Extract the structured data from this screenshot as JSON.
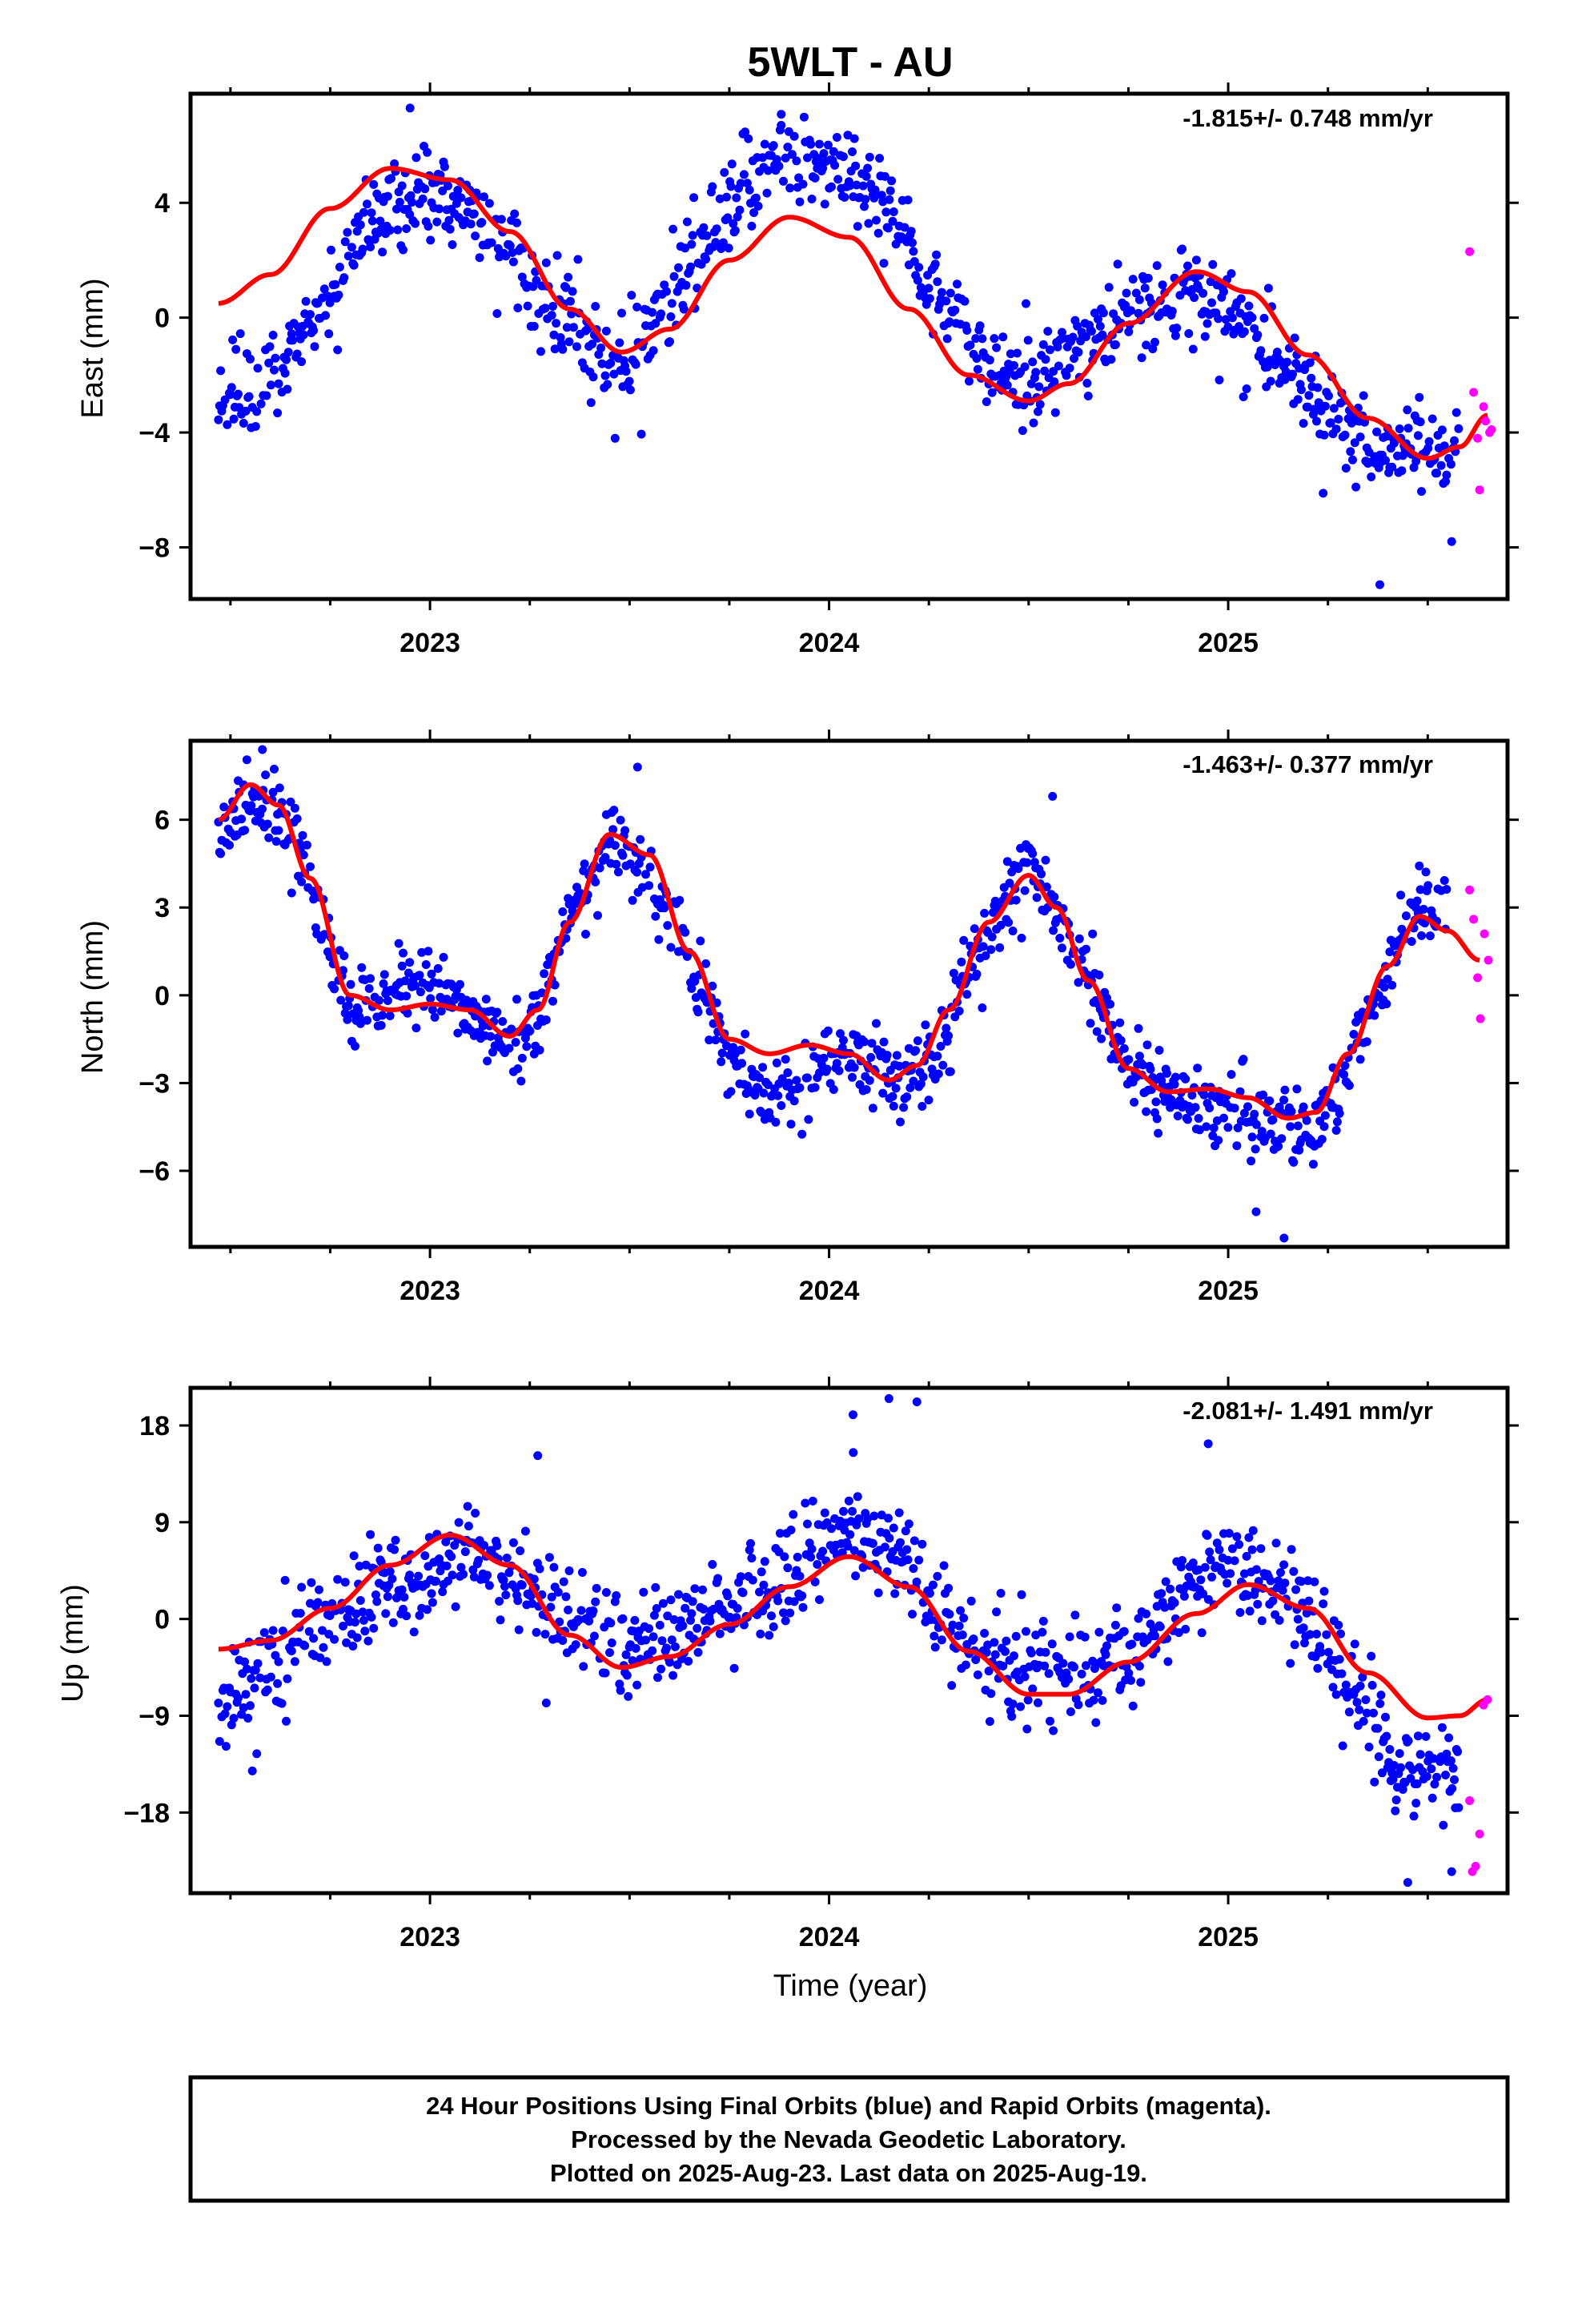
{
  "title": "5WLT - AU",
  "xlabel": "Time (year)",
  "colors": {
    "final": "#0000ff",
    "rapid": "#ff00ff",
    "fit": "#ff0000",
    "frame": "#000000"
  },
  "footer": {
    "lines": [
      "24 Hour Positions Using Final Orbits (blue) and Rapid Orbits (magenta).",
      "Processed by the Nevada Geodetic Laboratory.",
      "Plotted on 2025-Aug-23. Last data on 2025-Aug-19."
    ]
  },
  "chart_data": [
    {
      "type": "scatter",
      "component": "east",
      "ylabel": "East (mm)",
      "rate_label": "-1.815+/- 0.748 mm/yr",
      "xlim": [
        2022.4,
        2025.7
      ],
      "ylim": [
        -9.8,
        7.8
      ],
      "x_ticks": [
        2023,
        2024,
        2025
      ],
      "y_ticks": [
        -8,
        -4,
        0,
        4
      ],
      "fit_curve": {
        "x": [
          2022.47,
          2022.6,
          2022.75,
          2022.9,
          2023.05,
          2023.2,
          2023.35,
          2023.48,
          2023.6,
          2023.75,
          2023.9,
          2024.05,
          2024.2,
          2024.35,
          2024.5,
          2024.6,
          2024.75,
          2024.92,
          2025.05,
          2025.2,
          2025.35,
          2025.5,
          2025.58,
          2025.65
        ],
        "y": [
          0.5,
          1.5,
          3.8,
          5.2,
          4.8,
          3.0,
          0.3,
          -1.2,
          -0.4,
          2.0,
          3.5,
          2.8,
          0.3,
          -2.0,
          -2.9,
          -2.3,
          -0.2,
          1.6,
          0.9,
          -1.3,
          -3.5,
          -4.9,
          -4.5,
          -3.4
        ]
      },
      "final_trend": {
        "x": [
          2022.47,
          2022.55,
          2022.65,
          2022.72,
          2022.8,
          2022.9,
          2023.0,
          2023.1,
          2023.2,
          2023.28,
          2023.38,
          2023.45,
          2023.52,
          2023.6,
          2023.68,
          2023.76,
          2023.84,
          2023.92,
          2024.0,
          2024.08,
          2024.16,
          2024.24,
          2024.3,
          2024.38,
          2024.45,
          2024.52,
          2024.6,
          2024.7,
          2024.8,
          2024.9,
          2024.98,
          2025.05,
          2025.12,
          2025.2,
          2025.28,
          2025.36,
          2025.44,
          2025.52,
          2025.58
        ],
        "y": [
          -2.8,
          -2.2,
          -1.5,
          0.0,
          2.0,
          4.0,
          4.5,
          3.8,
          2.5,
          0.5,
          -0.5,
          -1.8,
          -1.2,
          0.5,
          2.5,
          4.0,
          5.5,
          6.0,
          5.5,
          4.5,
          3.5,
          1.5,
          0.0,
          -1.5,
          -2.3,
          -2.0,
          -1.2,
          -0.3,
          0.5,
          1.0,
          0.5,
          -0.3,
          -1.3,
          -2.5,
          -3.8,
          -4.3,
          -4.5,
          -4.4,
          -4.2
        ]
      },
      "final_spread": 1.1,
      "final_outliers": [
        [
          2025.38,
          -9.3
        ],
        [
          2025.56,
          -7.8
        ],
        [
          2022.95,
          7.3
        ],
        [
          2023.88,
          6.7
        ]
      ],
      "rapid": {
        "x": [
          2025.605,
          2025.615,
          2025.625,
          2025.63,
          2025.64,
          2025.645,
          2025.655,
          2025.66
        ],
        "y": [
          2.3,
          -2.6,
          -4.2,
          -6.0,
          -3.1,
          -3.6,
          -4.0,
          -3.9
        ]
      }
    },
    {
      "type": "scatter",
      "component": "north",
      "ylabel": "North (mm)",
      "rate_label": "-1.463+/- 0.377 mm/yr",
      "xlim": [
        2022.4,
        2025.7
      ],
      "ylim": [
        -8.6,
        8.7
      ],
      "x_ticks": [
        2023,
        2024,
        2025
      ],
      "y_ticks": [
        -6,
        -3,
        0,
        3,
        6
      ],
      "fit_curve": {
        "x": [
          2022.47,
          2022.55,
          2022.62,
          2022.7,
          2022.8,
          2022.9,
          2023.0,
          2023.1,
          2023.2,
          2023.27,
          2023.35,
          2023.45,
          2023.55,
          2023.65,
          2023.75,
          2023.85,
          2023.95,
          2024.05,
          2024.15,
          2024.22,
          2024.3,
          2024.4,
          2024.5,
          2024.57,
          2024.65,
          2024.75,
          2024.85,
          2024.95,
          2025.05,
          2025.15,
          2025.22,
          2025.3,
          2025.4,
          2025.48,
          2025.55,
          2025.63
        ],
        "y": [
          6.0,
          7.2,
          6.5,
          4.0,
          0.0,
          -0.5,
          -0.3,
          -0.5,
          -1.4,
          -0.5,
          2.5,
          5.5,
          4.8,
          1.5,
          -1.5,
          -2.0,
          -1.7,
          -2.0,
          -2.9,
          -2.4,
          -0.5,
          2.5,
          4.1,
          3.0,
          0.5,
          -2.5,
          -3.3,
          -3.2,
          -3.5,
          -4.2,
          -4.0,
          -2.0,
          1.0,
          2.7,
          2.2,
          1.2
        ]
      },
      "final_trend": {
        "x": [
          2022.47,
          2022.55,
          2022.62,
          2022.7,
          2022.8,
          2022.9,
          2023.0,
          2023.1,
          2023.2,
          2023.27,
          2023.35,
          2023.45,
          2023.55,
          2023.65,
          2023.75,
          2023.85,
          2023.95,
          2024.05,
          2024.15,
          2024.22,
          2024.3,
          2024.4,
          2024.5,
          2024.57,
          2024.65,
          2024.75,
          2024.85,
          2024.95,
          2025.05,
          2025.15,
          2025.22,
          2025.3,
          2025.4,
          2025.48,
          2025.55
        ],
        "y": [
          5.5,
          6.8,
          6.5,
          3.5,
          -0.5,
          0.2,
          0.5,
          -0.5,
          -1.8,
          -1.0,
          2.5,
          5.5,
          4.0,
          1.0,
          -2.0,
          -3.5,
          -2.8,
          -2.0,
          -2.5,
          -2.8,
          -1.0,
          2.5,
          4.5,
          3.0,
          0.5,
          -2.5,
          -3.5,
          -3.8,
          -4.2,
          -4.5,
          -4.8,
          -2.5,
          1.0,
          3.3,
          2.5
        ]
      },
      "final_spread": 0.9,
      "final_outliers": [
        [
          2022.58,
          8.4
        ],
        [
          2025.14,
          -8.3
        ],
        [
          2025.07,
          -7.4
        ],
        [
          2023.52,
          7.8
        ],
        [
          2024.56,
          6.8
        ]
      ],
      "rapid": {
        "x": [
          2025.605,
          2025.615,
          2025.625,
          2025.632,
          2025.642,
          2025.652
        ],
        "y": [
          3.6,
          2.6,
          0.6,
          -0.8,
          2.1,
          1.2
        ]
      }
    },
    {
      "type": "scatter",
      "component": "up",
      "ylabel": "Up (mm)",
      "rate_label": "-2.081+/- 1.491 mm/yr",
      "xlim": [
        2022.4,
        2025.7
      ],
      "ylim": [
        -25.5,
        21.5
      ],
      "x_ticks": [
        2023,
        2024,
        2025
      ],
      "y_ticks": [
        -18,
        -9,
        0,
        9,
        18
      ],
      "fit_curve": {
        "x": [
          2022.47,
          2022.6,
          2022.75,
          2022.9,
          2023.05,
          2023.2,
          2023.35,
          2023.48,
          2023.6,
          2023.75,
          2023.9,
          2024.05,
          2024.2,
          2024.35,
          2024.5,
          2024.6,
          2024.75,
          2024.92,
          2025.05,
          2025.2,
          2025.35,
          2025.5,
          2025.58,
          2025.65
        ],
        "y": [
          -2.8,
          -2.0,
          1.0,
          5.0,
          7.8,
          5.0,
          -1.5,
          -4.5,
          -3.5,
          -0.5,
          3.0,
          5.8,
          3.0,
          -3.0,
          -7.0,
          -7.0,
          -4.0,
          0.5,
          3.2,
          1.0,
          -5.0,
          -9.2,
          -9.0,
          -7.5
        ]
      },
      "final_trend": {
        "x": [
          2022.47,
          2022.55,
          2022.65,
          2022.75,
          2022.85,
          2022.95,
          2023.05,
          2023.15,
          2023.25,
          2023.38,
          2023.5,
          2023.62,
          2023.75,
          2023.85,
          2023.95,
          2024.05,
          2024.15,
          2024.25,
          2024.35,
          2024.45,
          2024.55,
          2024.65,
          2024.75,
          2024.85,
          2024.95,
          2025.05,
          2025.15,
          2025.25,
          2025.35,
          2025.42,
          2025.5,
          2025.58
        ],
        "y": [
          -9.0,
          -6.0,
          -3.0,
          -1.0,
          2.0,
          4.0,
          6.0,
          5.0,
          3.0,
          -1.0,
          -2.0,
          -1.0,
          0.5,
          3.0,
          6.0,
          9.0,
          7.0,
          2.0,
          -2.5,
          -4.5,
          -5.5,
          -5.0,
          -3.0,
          0.5,
          3.5,
          5.0,
          2.0,
          -3.0,
          -8.0,
          -13.0,
          -15.0,
          -13.0
        ]
      },
      "final_spread": 3.2,
      "final_outliers": [
        [
          2024.06,
          19.0
        ],
        [
          2024.15,
          20.5
        ],
        [
          2024.22,
          20.2
        ],
        [
          2024.95,
          16.3
        ],
        [
          2023.27,
          15.2
        ],
        [
          2025.45,
          -24.5
        ],
        [
          2025.56,
          -23.5
        ]
      ],
      "rapid": {
        "x": [
          2025.605,
          2025.612,
          2025.62,
          2025.63,
          2025.64,
          2025.65
        ],
        "y": [
          -16.9,
          -23.5,
          -23.0,
          -20.0,
          -8.0,
          -7.5
        ]
      }
    }
  ]
}
